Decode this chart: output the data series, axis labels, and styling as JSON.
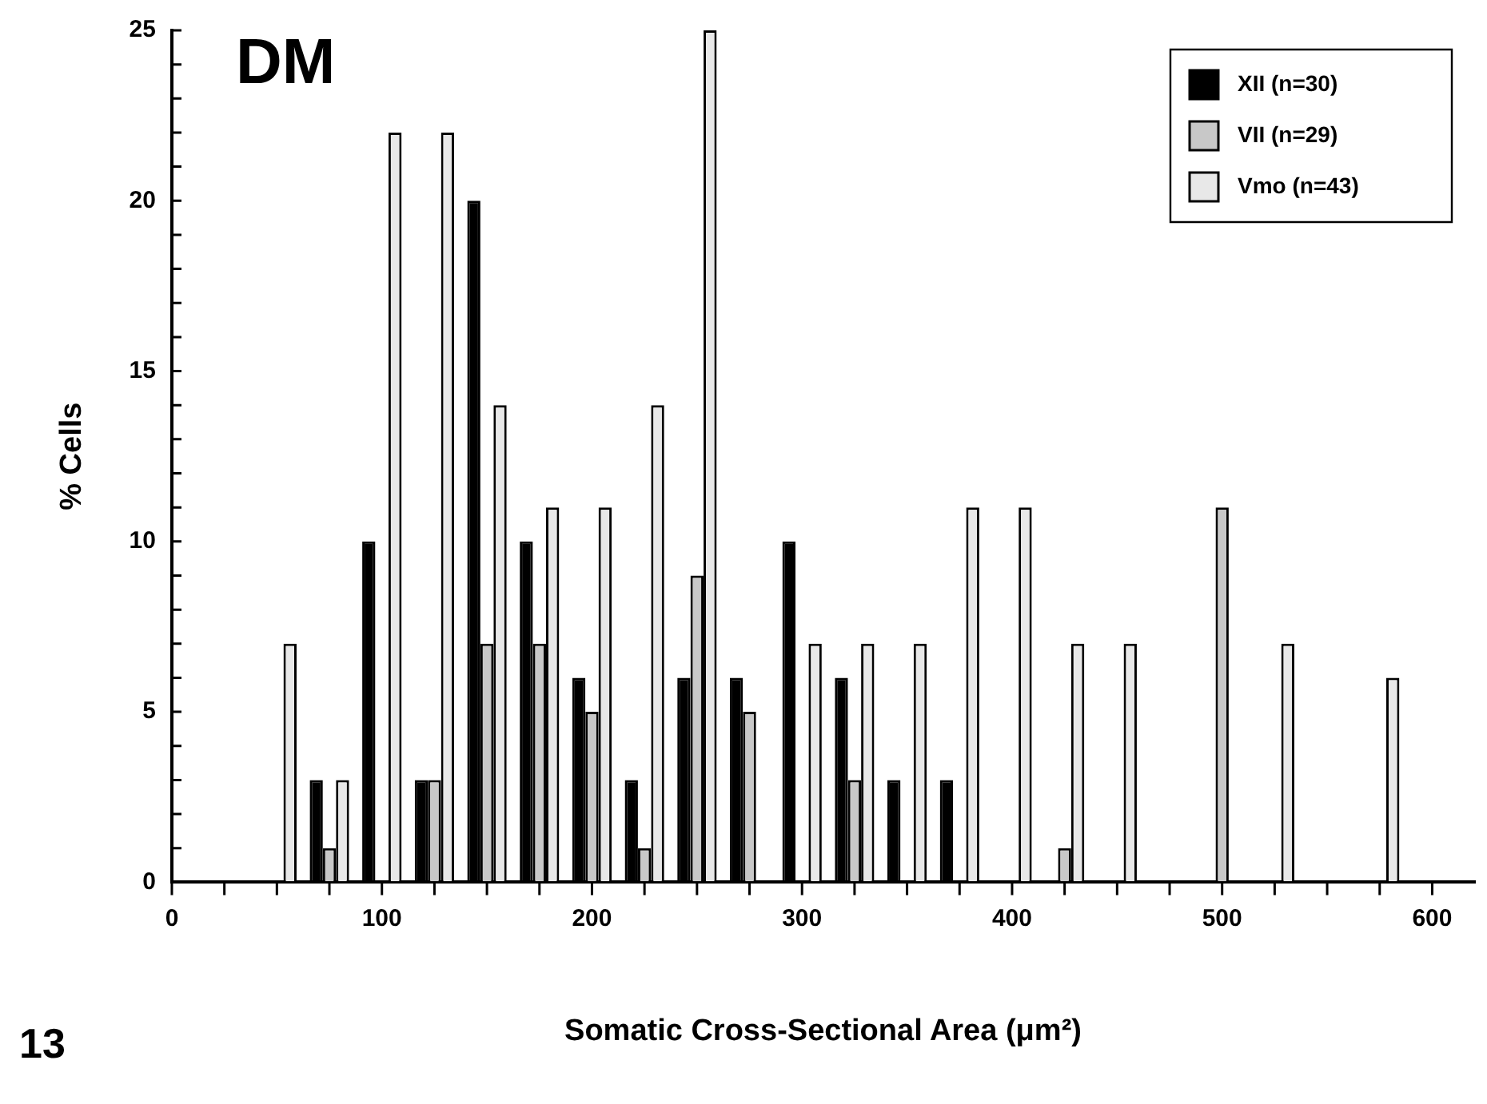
{
  "chart_data": {
    "type": "bar",
    "title": "DM",
    "xlabel": "Somatic Cross-Sectional Area (μm²)",
    "ylabel": "% Cells",
    "annotations": [
      "13"
    ],
    "x": [
      50,
      75,
      100,
      125,
      150,
      175,
      200,
      225,
      250,
      275,
      300,
      325,
      350,
      375,
      400,
      425,
      450,
      475,
      500,
      525,
      550,
      575
    ],
    "series": [
      {
        "name": "XII (n=30)",
        "color": "#000000",
        "values": [
          null,
          3,
          10,
          3,
          20,
          10,
          6,
          3,
          6,
          6,
          10,
          6,
          3,
          3,
          null,
          null,
          null,
          null,
          null,
          null,
          null,
          null
        ]
      },
      {
        "name": "VII (n=29)",
        "color": "#c8c8c8",
        "values": [
          null,
          1,
          null,
          3,
          7,
          7,
          5,
          1,
          9,
          5,
          null,
          3,
          null,
          null,
          null,
          1,
          null,
          null,
          11,
          null,
          null,
          null
        ]
      },
      {
        "name": "Vmo (n=43)",
        "color": "#e8e8e8",
        "values": [
          7,
          3,
          22,
          22,
          14,
          11,
          11,
          14,
          25,
          null,
          7,
          7,
          7,
          11,
          11,
          7,
          7,
          null,
          null,
          7,
          null,
          6
        ]
      }
    ],
    "xlim": [
      0,
      620
    ],
    "xticks": [
      0,
      {
        "value": 25,
        "label": null
      },
      {
        "value": 50,
        "label": null
      },
      {
        "value": 75,
        "label": null
      },
      100,
      {
        "value": 125,
        "label": null
      },
      {
        "value": 150,
        "label": null
      },
      {
        "value": 175,
        "label": null
      },
      200,
      {
        "value": 225,
        "label": null
      },
      {
        "value": 250,
        "label": null
      },
      {
        "value": 275,
        "label": null
      },
      300,
      {
        "value": 325,
        "label": null
      },
      {
        "value": 350,
        "label": null
      },
      {
        "value": 375,
        "label": null
      },
      400,
      {
        "value": 425,
        "label": null
      },
      {
        "value": 450,
        "label": null
      },
      {
        "value": 475,
        "label": null
      },
      500,
      {
        "value": 525,
        "label": null
      },
      {
        "value": 550,
        "label": null
      },
      {
        "value": 575,
        "label": null
      },
      600
    ],
    "ylim": [
      0,
      25
    ],
    "yticks": [
      0,
      {
        "value": 1,
        "label": null
      },
      {
        "value": 2,
        "label": null
      },
      {
        "value": 3,
        "label": null
      },
      {
        "value": 4,
        "label": null
      },
      5,
      {
        "value": 6,
        "label": null
      },
      {
        "value": 7,
        "label": null
      },
      {
        "value": 8,
        "label": null
      },
      {
        "value": 9,
        "label": null
      },
      10,
      {
        "value": 11,
        "label": null
      },
      {
        "value": 12,
        "label": null
      },
      {
        "value": 13,
        "label": null
      },
      {
        "value": 14,
        "label": null
      },
      15,
      {
        "value": 16,
        "label": null
      },
      {
        "value": 17,
        "label": null
      },
      {
        "value": 18,
        "label": null
      },
      {
        "value": 19,
        "label": null
      },
      20,
      {
        "value": 21,
        "label": null
      },
      {
        "value": 22,
        "label": null
      },
      {
        "value": 23,
        "label": null
      },
      {
        "value": 24,
        "label": null
      },
      25
    ],
    "legend": "top right"
  }
}
